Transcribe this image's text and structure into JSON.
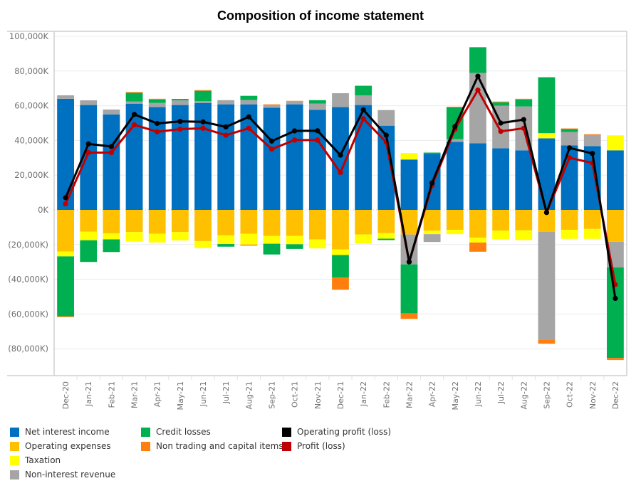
{
  "chart_data": {
    "type": "bar",
    "subtype": "stacked-bar-with-lines",
    "title": "Composition of income statement",
    "xlabel": "",
    "ylabel": "",
    "ylim": [
      -95000,
      105000
    ],
    "y_unit": "K",
    "grid": true,
    "legend_position": "bottom",
    "yticks": [
      {
        "value": 100000,
        "label": "100,000K"
      },
      {
        "value": 80000,
        "label": "80,000K"
      },
      {
        "value": 60000,
        "label": "60,000K"
      },
      {
        "value": 40000,
        "label": "40,000K"
      },
      {
        "value": 20000,
        "label": "20,000K"
      },
      {
        "value": 0,
        "label": "0K"
      },
      {
        "value": -20000,
        "label": "(20,000K)"
      },
      {
        "value": -40000,
        "label": "(40,000K)"
      },
      {
        "value": -60000,
        "label": "(60,000K)"
      },
      {
        "value": -80000,
        "label": "(80,000K)"
      }
    ],
    "categories": [
      "Dec-20",
      "Jan-21",
      "Feb-21",
      "Mar-21",
      "Apr-21",
      "May-21",
      "Jun-21",
      "Jul-21",
      "Aug-21",
      "Sep-21",
      "Oct-21",
      "Nov-21",
      "Dec-21",
      "Jan-22",
      "Feb-22",
      "Mar-22",
      "Apr-22",
      "May-22",
      "Jun-22",
      "Jul-22",
      "Aug-22",
      "Sep-22",
      "Oct-22",
      "Nov-22",
      "Dec-22"
    ],
    "bar_series": [
      {
        "name": "Net interest income",
        "color": "#0070C0",
        "values": [
          64000,
          60400,
          55000,
          61200,
          59200,
          60400,
          61600,
          60800,
          60800,
          58800,
          60800,
          57600,
          59200,
          60400,
          48500,
          29000,
          32200,
          39200,
          38400,
          35500,
          34300,
          41200,
          37100,
          36700,
          34300
        ]
      },
      {
        "name": "Operating expenses",
        "color": "#FFC000",
        "values": [
          -24000,
          -12500,
          -13500,
          -12800,
          -13800,
          -12800,
          -18000,
          -14700,
          -13800,
          -15000,
          -15000,
          -17000,
          -22800,
          -14200,
          -13400,
          -14200,
          -12000,
          -11500,
          -16000,
          -12000,
          -11800,
          -12700,
          -11500,
          -11000,
          -18400
        ]
      },
      {
        "name": "Taxation",
        "color": "#FFFF00",
        "values": [
          -2800,
          -5000,
          -3500,
          -5500,
          -5000,
          -4800,
          -4000,
          -5000,
          -6200,
          -4500,
          -4800,
          -5200,
          -3200,
          -5200,
          -3200,
          3700,
          -2000,
          -2500,
          -2800,
          -5000,
          -5600,
          3000,
          -5200,
          -5700,
          8600
        ]
      },
      {
        "name": "Non-interest revenue",
        "color": "#A5A5A5",
        "values": [
          2000,
          2700,
          2800,
          1200,
          2400,
          2700,
          1000,
          2400,
          2500,
          1600,
          1600,
          3600,
          8000,
          5600,
          9000,
          -17200,
          -4500,
          1600,
          40500,
          24500,
          25300,
          -62000,
          7800,
          6500,
          -14700
        ]
      },
      {
        "name": "Credit losses",
        "color": "#00B050",
        "values": [
          -34500,
          -12500,
          -7300,
          5000,
          2000,
          800,
          6000,
          -1500,
          2400,
          -6200,
          -2700,
          2000,
          -13000,
          5500,
          -800,
          -28200,
          800,
          18200,
          14800,
          2000,
          4000,
          32200,
          1600,
          0,
          -52200
        ]
      },
      {
        "name": "Non trading and capital items",
        "color": "#FF7F0E",
        "values": [
          -500,
          0,
          0,
          500,
          400,
          0,
          400,
          0,
          -600,
          400,
          400,
          0,
          -7000,
          0,
          0,
          -3200,
          0,
          400,
          -5300,
          400,
          400,
          -2400,
          400,
          400,
          -1200
        ]
      }
    ],
    "line_series": [
      {
        "name": "Operating profit (loss)",
        "color": "#000000",
        "values": [
          7000,
          38000,
          36500,
          55000,
          49800,
          51000,
          50700,
          47800,
          53600,
          39600,
          45500,
          45600,
          31500,
          57600,
          43000,
          -30000,
          15500,
          48000,
          77000,
          50000,
          52000,
          -1500,
          35700,
          32500,
          -51000
        ]
      },
      {
        "name": "Profit (loss)",
        "color": "#C00000",
        "values": [
          3500,
          33000,
          33000,
          49000,
          45000,
          46500,
          47000,
          43000,
          47000,
          35000,
          40200,
          40200,
          21500,
          52500,
          39000,
          -30000,
          14000,
          46500,
          69000,
          45200,
          47000,
          -1500,
          30000,
          27000,
          -43000
        ]
      }
    ]
  },
  "legend": [
    {
      "label": "Net interest income",
      "color": "#0070C0"
    },
    {
      "label": "Operating expenses",
      "color": "#FFC000"
    },
    {
      "label": "Taxation",
      "color": "#FFFF00"
    },
    {
      "label": "Non-interest revenue",
      "color": "#A5A5A5"
    },
    {
      "label": "Credit losses",
      "color": "#00B050"
    },
    {
      "label": "Non trading and capital items",
      "color": "#FF7F0E"
    },
    {
      "label": "Operating profit (loss)",
      "color": "#000000"
    },
    {
      "label": "Profit (loss)",
      "color": "#C00000"
    }
  ]
}
